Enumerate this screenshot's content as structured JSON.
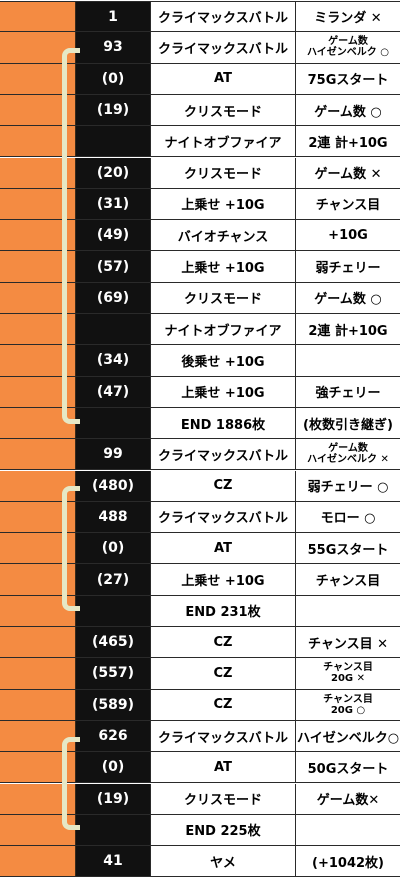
{
  "rows": [
    {
      "num": "1",
      "event": "クライマックスバトル",
      "note": "ミランダ ✕"
    },
    {
      "num": "93",
      "event": "クライマックスバトル",
      "note_lines": [
        "ゲーム数",
        "ハイゼンベルク ○"
      ]
    },
    {
      "num": "(0)",
      "event": "AT",
      "note": "75Gスタート"
    },
    {
      "num": "(19)",
      "event": "クリスモード",
      "note": "ゲーム数 ○"
    },
    {
      "num": "",
      "event": "ナイトオブファイア",
      "note": "2連 計+10G"
    },
    {
      "num": "(20)",
      "event": "クリスモード",
      "note": "ゲーム数 ✕"
    },
    {
      "num": "(31)",
      "event": "上乗せ +10G",
      "note": "チャンス目"
    },
    {
      "num": "(49)",
      "event": "バイオチャンス",
      "note": "+10G"
    },
    {
      "num": "(57)",
      "event": "上乗せ +10G",
      "note": "弱チェリー"
    },
    {
      "num": "(69)",
      "event": "クリスモード",
      "note": "ゲーム数 ○"
    },
    {
      "num": "",
      "event": "ナイトオブファイア",
      "note": "2連 計+10G"
    },
    {
      "num": "(34)",
      "event": "後乗せ +10G",
      "note": ""
    },
    {
      "num": "(47)",
      "event": "上乗せ +10G",
      "note": "強チェリー"
    },
    {
      "num": "",
      "event": "END 1886枚",
      "note": "(枚数引き継ぎ)"
    },
    {
      "num": "99",
      "event": "クライマックスバトル",
      "note_lines": [
        "ゲーム数",
        "ハイゼンベルク ✕"
      ]
    },
    {
      "num": "(480)",
      "event": "CZ",
      "note": "弱チェリー ○"
    },
    {
      "num": "488",
      "event": "クライマックスバトル",
      "note": "モロー ○"
    },
    {
      "num": "(0)",
      "event": "AT",
      "note": "55Gスタート"
    },
    {
      "num": "(27)",
      "event": "上乗せ +10G",
      "note": "チャンス目"
    },
    {
      "num": "",
      "event": "END 231枚",
      "note": ""
    },
    {
      "num": "(465)",
      "event": "CZ",
      "note": "チャンス目 ✕"
    },
    {
      "num": "(557)",
      "event": "CZ",
      "note_lines": [
        "チャンス目",
        "20G ✕"
      ]
    },
    {
      "num": "(589)",
      "event": "CZ",
      "note_lines": [
        "チャンス目",
        "20G ○"
      ]
    },
    {
      "num": "626",
      "event": "クライマックスバトル",
      "note": "ハイゼンベルク○"
    },
    {
      "num": "(0)",
      "event": "AT",
      "note": "50Gスタート"
    },
    {
      "num": "(19)",
      "event": "クリスモード",
      "note": "ゲーム数✕"
    },
    {
      "num": "",
      "event": "END 225枚",
      "note": ""
    },
    {
      "num": "41",
      "event": "ヤメ",
      "note": "(+1042枚)"
    }
  ],
  "colors": {
    "orange": "#f48b42",
    "black": "#111111",
    "bracket": "#e6e8c6"
  }
}
